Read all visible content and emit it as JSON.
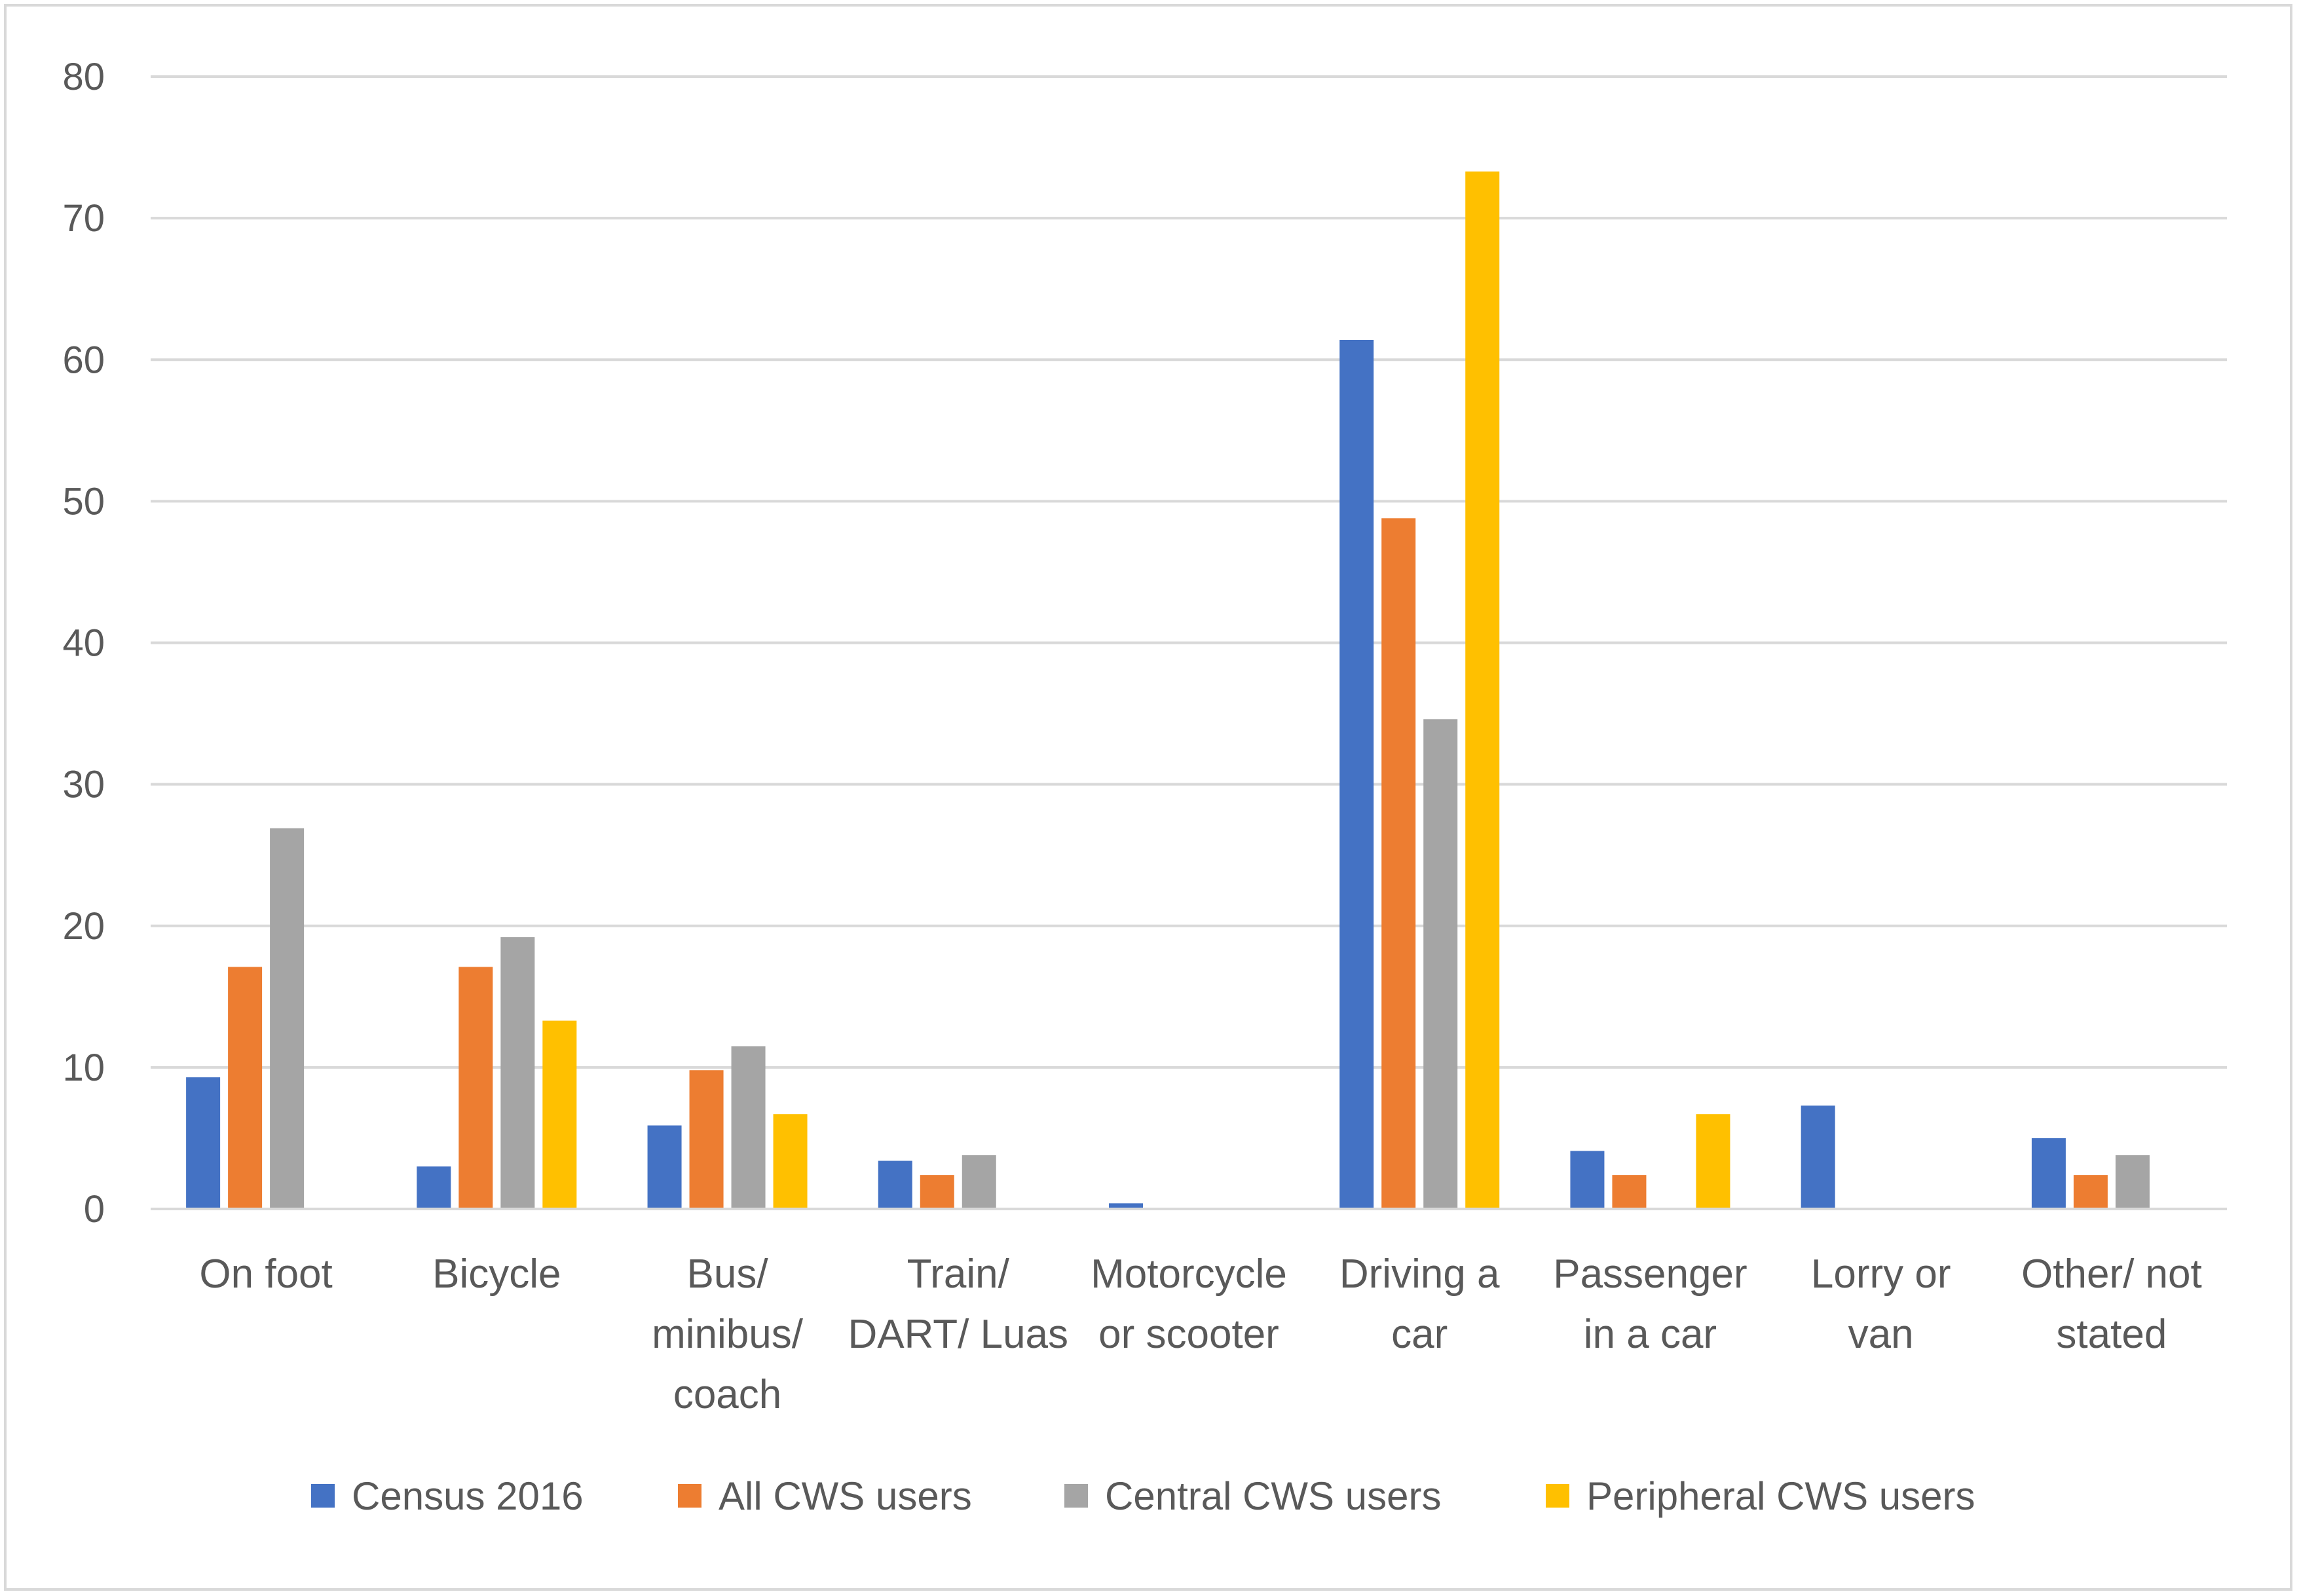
{
  "chart_data": {
    "type": "bar",
    "title": "",
    "xlabel": "",
    "ylabel": "",
    "ylim": [
      0,
      80
    ],
    "yticks": [
      0,
      10,
      20,
      30,
      40,
      50,
      60,
      70,
      80
    ],
    "grid": true,
    "legend_position": "bottom",
    "categories": [
      [
        "On foot"
      ],
      [
        "Bicycle"
      ],
      [
        "Bus/",
        "minibus/",
        "coach"
      ],
      [
        "Train/",
        "DART/ Luas"
      ],
      [
        "Motorcycle",
        "or scooter"
      ],
      [
        "Driving a",
        "car"
      ],
      [
        "Passenger",
        "in a car"
      ],
      [
        "Lorry or",
        "van"
      ],
      [
        "Other/ not",
        "stated"
      ]
    ],
    "series": [
      {
        "name": "Census 2016",
        "color": "#4472c4",
        "values": [
          9.3,
          3.0,
          5.9,
          3.4,
          0.4,
          61.4,
          4.1,
          7.3,
          5.0
        ]
      },
      {
        "name": "All CWS users",
        "color": "#ed7d31",
        "values": [
          17.1,
          17.1,
          9.8,
          2.4,
          0,
          48.8,
          2.4,
          0,
          2.4
        ]
      },
      {
        "name": "Central CWS users",
        "color": "#a5a5a5",
        "values": [
          26.9,
          19.2,
          11.5,
          3.8,
          0,
          34.6,
          0,
          0,
          3.8
        ]
      },
      {
        "name": "Peripheral CWS users",
        "color": "#ffc000",
        "values": [
          0,
          13.3,
          6.7,
          0,
          0,
          73.3,
          6.7,
          0,
          0
        ]
      }
    ]
  }
}
